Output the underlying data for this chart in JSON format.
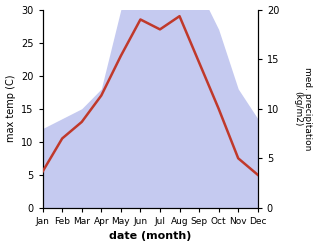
{
  "months": [
    "Jan",
    "Feb",
    "Mar",
    "Apr",
    "May",
    "Jun",
    "Jul",
    "Aug",
    "Sep",
    "Oct",
    "Nov",
    "Dec"
  ],
  "max_temp": [
    5.5,
    10.5,
    13.0,
    17.0,
    23.0,
    28.5,
    27.0,
    29.0,
    22.0,
    15.0,
    7.5,
    5.0
  ],
  "precipitation": [
    8,
    9,
    10,
    12,
    20,
    24,
    21,
    23,
    22,
    18,
    12,
    9
  ],
  "temp_color": "#c0392b",
  "precip_fill_color": "#c5caf0",
  "xlabel": "date (month)",
  "ylabel_left": "max temp (C)",
  "ylabel_right": "med. precipitation\n(kg/m2)",
  "ylim_left": [
    0,
    30
  ],
  "ylim_right": [
    0,
    20
  ],
  "yticks_left": [
    0,
    5,
    10,
    15,
    20,
    25,
    30
  ],
  "yticks_right": [
    0,
    5,
    10,
    15,
    20
  ],
  "background_color": "#ffffff"
}
